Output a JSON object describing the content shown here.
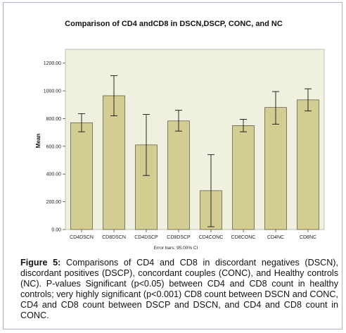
{
  "chart_data": {
    "type": "bar",
    "title": "Comparison of CD4 andCD8 in DSCN,DSCP, CONC, and NC",
    "xlabel": "",
    "ylabel": "Mean",
    "categories": [
      "CD4DSCN",
      "CD8DSCN",
      "CD4DSCP",
      "CD8DSCP",
      "CD4CONC",
      "CD8CONC",
      "CD4NC",
      "CD8NC"
    ],
    "values": [
      770,
      965,
      610,
      783,
      280,
      750,
      880,
      935
    ],
    "error_low": [
      705,
      820,
      390,
      710,
      20,
      705,
      760,
      855
    ],
    "error_high": [
      835,
      1110,
      830,
      860,
      540,
      795,
      995,
      1015
    ],
    "ylim": [
      0,
      1300
    ],
    "yticks": [
      "0.00",
      "200.00",
      "400.00",
      "600.00",
      "800.00",
      "1000.00",
      "1200.00"
    ],
    "ytick_values": [
      0,
      200,
      400,
      600,
      800,
      1000,
      1200
    ],
    "footnote": "Error bars: 95.00% CI",
    "colors": {
      "plot_bg": "#f0f0de",
      "bar_fill": "#d4cd92",
      "bar_stroke": "#3a3a2a",
      "error_bar": "#111111"
    }
  },
  "caption": {
    "label": "Figure 5:",
    "text": " Comparisons of CD4 and CD8 in discordant negatives (DSCN), discordant positives (DSCP), concordant couples (CONC), and Healthy controls (NC). P-values Significant (p<0.05) between CD4 and CD8 count in healthy controls; very highly significant (p<0.001) CD8 count between DSCN and CONC, CD4 and CD8 count between DSCP and DSCN, and CD4 and CD8 count in CONC."
  }
}
